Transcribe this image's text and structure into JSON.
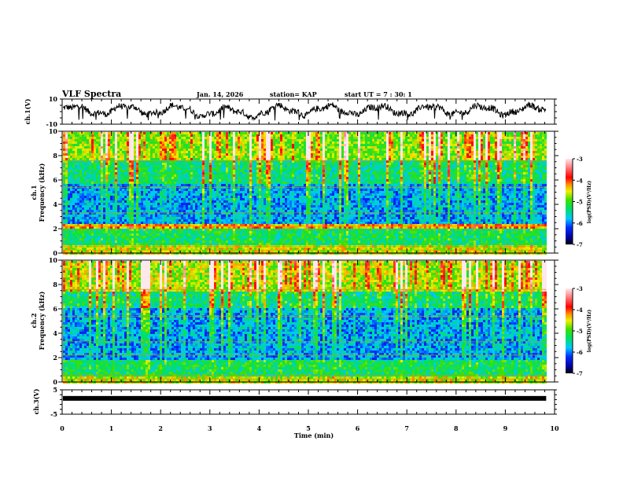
{
  "header": {
    "title": "VLF Spectra",
    "date": "Jan. 14, 2026",
    "station": "station= KAP",
    "start_ut": "start  UT =   7 : 30: 1"
  },
  "chart_data": [
    {
      "type": "line",
      "name": "ch1-waveform",
      "ylabel": "ch.1(V)",
      "ylim": [
        -10,
        10
      ],
      "yticks": [
        "10",
        "-10"
      ],
      "xlim": [
        0,
        10
      ],
      "data_end_min": 9.83,
      "description_values": "noisy waveform oscillating roughly between -6 and +8 V"
    },
    {
      "type": "heatmap",
      "name": "ch1-spectrogram",
      "ylabel_line1": "ch.1",
      "ylabel_line2": "Frequency (kHz)",
      "ylim": [
        0,
        10
      ],
      "yticks": [
        "0",
        "2",
        "4",
        "6",
        "8",
        "10"
      ],
      "xlim": [
        0,
        10
      ],
      "data_end_min": 9.83,
      "colorbar": {
        "label": "log(PSD)(V²/Hz)",
        "range": [
          -7,
          -3
        ],
        "ticks": [
          "-3",
          "-4",
          "-5",
          "-6",
          "-7"
        ]
      },
      "bands": [
        {
          "from": 0,
          "to": 0.8,
          "level": -4.6
        },
        {
          "from": 0.8,
          "to": 2.1,
          "level": -5.3
        },
        {
          "from": 2.1,
          "to": 2.4,
          "level": -4.3
        },
        {
          "from": 2.4,
          "to": 5.8,
          "level": -5.9
        },
        {
          "from": 5.8,
          "to": 7.8,
          "level": -5.4
        },
        {
          "from": 7.8,
          "to": 10,
          "level": -4.8
        }
      ]
    },
    {
      "type": "heatmap",
      "name": "ch2-spectrogram",
      "ylabel_line1": "ch.2",
      "ylabel_line2": "Frequency (kHz)",
      "ylim": [
        0,
        10
      ],
      "yticks": [
        "0",
        "2",
        "4",
        "6",
        "8",
        "10"
      ],
      "xlim": [
        0,
        10
      ],
      "data_end_min": 9.83,
      "colorbar": {
        "label": "log(PSD)(V²/Hz)",
        "range": [
          -7,
          -3
        ],
        "ticks": [
          "-3",
          "-4",
          "-5",
          "-6",
          "-7"
        ]
      },
      "bands": [
        {
          "from": 0,
          "to": 0.6,
          "level": -4.6
        },
        {
          "from": 0.6,
          "to": 2.0,
          "level": -5.3
        },
        {
          "from": 2.0,
          "to": 6.2,
          "level": -5.9
        },
        {
          "from": 6.2,
          "to": 7.6,
          "level": -5.4
        },
        {
          "from": 7.6,
          "to": 10,
          "level": -4.7
        }
      ]
    },
    {
      "type": "line",
      "name": "ch3-waveform",
      "ylabel": "ch.3(V)",
      "ylim": [
        -5,
        5
      ],
      "yticks": [
        "5",
        "-5"
      ],
      "xlim": [
        0,
        10
      ],
      "constant_value": 1.5,
      "data_end_min": 9.83,
      "xlabel": "Time (min)",
      "xticks": [
        "0",
        "1",
        "2",
        "3",
        "4",
        "5",
        "6",
        "7",
        "8",
        "9",
        "10"
      ]
    }
  ]
}
